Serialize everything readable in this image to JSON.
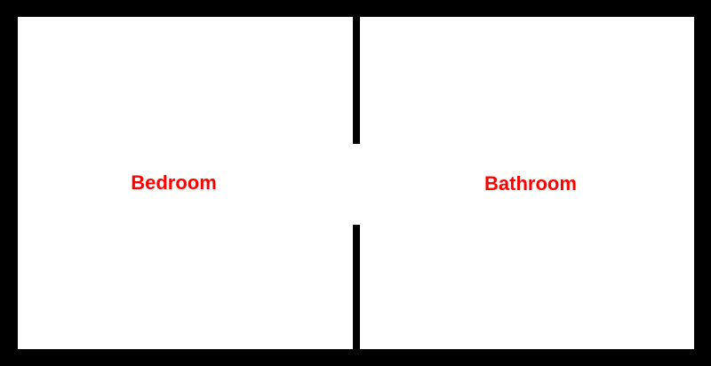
{
  "rooms": {
    "bedroom": {
      "label": "Bedroom"
    },
    "bathroom": {
      "label": "Bathroom"
    }
  },
  "colors": {
    "wall": "#000000",
    "floor": "#ffffff",
    "label": "#ff0000"
  }
}
